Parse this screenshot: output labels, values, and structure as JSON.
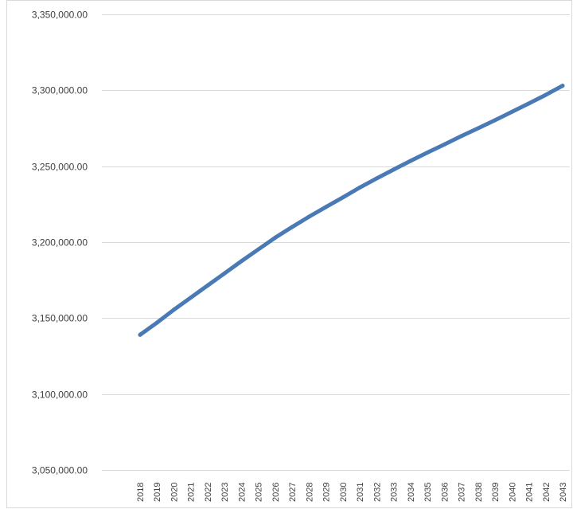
{
  "chart_data": {
    "type": "line",
    "title": "",
    "xlabel": "",
    "ylabel": "",
    "ylim": [
      3050000,
      3350000
    ],
    "y_ticks": [
      3050000,
      3100000,
      3150000,
      3200000,
      3250000,
      3300000,
      3350000
    ],
    "y_tick_labels": [
      "3,050,000.00",
      "3,100,000.00",
      "3,150,000.00",
      "3,200,000.00",
      "3,250,000.00",
      "3,300,000.00",
      "3,350,000.00"
    ],
    "grid": true,
    "legend": "none",
    "categories": [
      "2018",
      "2019",
      "2020",
      "2021",
      "2022",
      "2023",
      "2024",
      "2025",
      "2026",
      "2027",
      "2028",
      "2029",
      "2030",
      "2031",
      "2032",
      "2033",
      "2034",
      "2035",
      "2036",
      "2037",
      "2038",
      "2039",
      "2040",
      "2041",
      "2042",
      "2043"
    ],
    "series": [
      {
        "values": [
          3139000,
          3147000,
          3155500,
          3163500,
          3171500,
          3179500,
          3187500,
          3195300,
          3203000,
          3210000,
          3216800,
          3223200,
          3229500,
          3236000,
          3242000,
          3247800,
          3253500,
          3259000,
          3264300,
          3269800,
          3275000,
          3280300,
          3285800,
          3291300,
          3297000,
          3303000
        ],
        "color": "#4a7ab5"
      }
    ],
    "colors": {
      "line": "#4a7ab5",
      "grid": "#d9d9d9",
      "axis": "#d9d9d9",
      "text": "#404040"
    }
  }
}
